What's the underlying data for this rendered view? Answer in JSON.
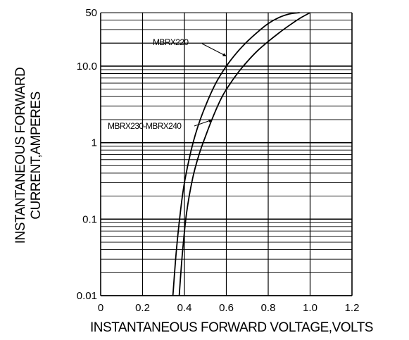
{
  "chart_data": {
    "type": "line",
    "title": "",
    "xlabel": "INSTANTANEOUS FORWARD VOLTAGE,VOLTS",
    "ylabel_lines": [
      "INSTANTANEOUS FORWARD",
      "CURRENT,AMPERES"
    ],
    "x_scale": "linear",
    "y_scale": "log",
    "xlim": [
      0,
      1.2
    ],
    "ylim": [
      0.01,
      50
    ],
    "x_ticks": [
      0,
      0.2,
      0.4,
      0.6,
      0.8,
      1.0,
      1.2
    ],
    "x_tick_labels": [
      "0",
      "0.2",
      "0.4",
      "0.6",
      "0.8",
      "1.0",
      "1.2"
    ],
    "y_ticks": [
      0.01,
      0.1,
      1,
      10,
      50
    ],
    "y_tick_labels": [
      "0.01",
      "0.1",
      "1",
      "10.0",
      "50"
    ],
    "grid": true,
    "series": [
      {
        "name": "MBRX220",
        "x": [
          0.345,
          0.36,
          0.38,
          0.4,
          0.43,
          0.46,
          0.5,
          0.55,
          0.6,
          0.65,
          0.7,
          0.75,
          0.8,
          0.85,
          0.9,
          0.95
        ],
        "y": [
          0.01,
          0.035,
          0.12,
          0.3,
          0.75,
          1.5,
          3.0,
          6.0,
          10.0,
          15.0,
          21.0,
          28.0,
          36.0,
          43.0,
          48.0,
          50.0
        ]
      },
      {
        "name": "MBRX230-MBRX240",
        "x": [
          0.375,
          0.39,
          0.41,
          0.44,
          0.47,
          0.5,
          0.54,
          0.58,
          0.62,
          0.66,
          0.7,
          0.75,
          0.8,
          0.85,
          0.9,
          0.95,
          1.0
        ],
        "y": [
          0.01,
          0.035,
          0.12,
          0.35,
          0.7,
          1.2,
          2.3,
          4.0,
          6.0,
          8.5,
          11.5,
          16.0,
          21.0,
          27.0,
          34.0,
          42.0,
          50.0
        ]
      }
    ],
    "annotations": [
      {
        "text": "MBRX220",
        "series": "MBRX220"
      },
      {
        "text": "MBRX230-MBRX240",
        "series": "MBRX230-MBRX240"
      }
    ],
    "colors": {
      "line": "#000000",
      "grid": "#000000",
      "background": "#ffffff"
    }
  }
}
